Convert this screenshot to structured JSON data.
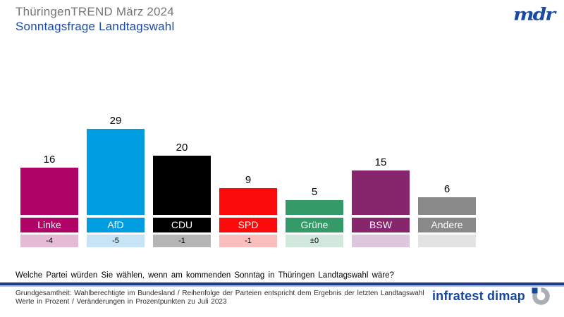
{
  "header": {
    "title": "ThüringenTREND März 2024",
    "subtitle": "Sonntagsfrage Landtagswahl",
    "mdr_logo_text": "mdr"
  },
  "chart_data": {
    "type": "bar",
    "title": "Sonntagsfrage Landtagswahl Thüringen",
    "categories": [
      "Linke",
      "AfD",
      "CDU",
      "SPD",
      "Grüne",
      "BSW",
      "Andere"
    ],
    "values": [
      16,
      29,
      20,
      9,
      5,
      15,
      6
    ],
    "changes": [
      "-4",
      "-5",
      "-1",
      "-1",
      "±0",
      "",
      ""
    ],
    "unit": "Prozent",
    "ylim": [
      0,
      30
    ],
    "grid": false,
    "legend": "none",
    "bar_colors": [
      "#B00368",
      "#009EE0",
      "#000000",
      "#FA0A0A",
      "#349A67",
      "#87256D",
      "#898989"
    ],
    "change_bg_colors": [
      "#E4BAD5",
      "#C6E4F5",
      "#B5B5B5",
      "#FABEBE",
      "#D3E8DD",
      "#DCC7DC",
      "#E3E3E3"
    ]
  },
  "question": "Welche Partei würden Sie wählen, wenn am kommenden Sonntag in Thüringen Landtagswahl wäre?",
  "footnotes": {
    "line1": "Grundgesamtheit: Wahlberechtigte im Bundesland / Reihenfolge der Parteien entspricht dem Ergebnis der letzten Landtagswahl",
    "line2": "Werte in Prozent / Veränderungen in Prozentpunkten zu Juli 2023"
  },
  "branding": {
    "infratest_text": "infratest dimap"
  },
  "colors": {
    "title_gray": "#767676",
    "accent_blue": "#1C4AA0",
    "separator_navy": "#1B3A8C",
    "logo_ring_gray": "#A9AEB4"
  }
}
